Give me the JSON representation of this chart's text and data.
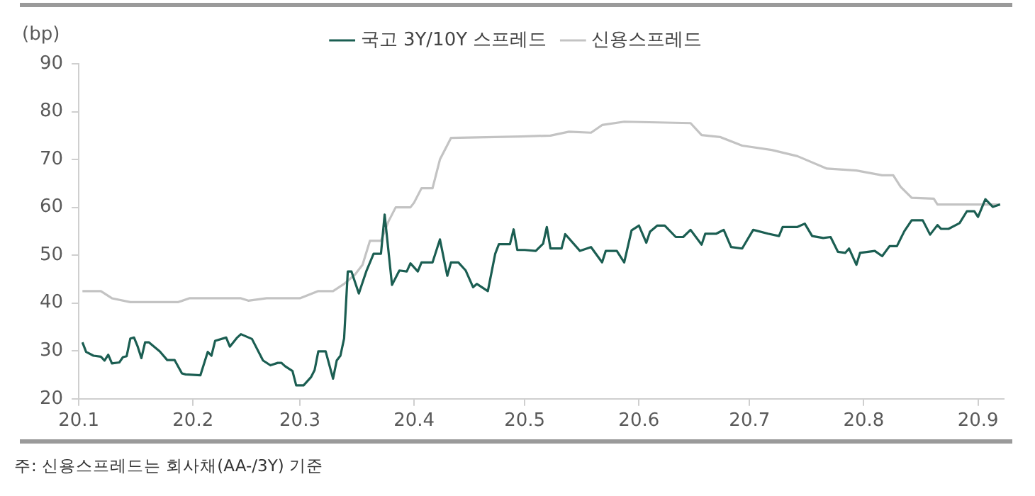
{
  "chart_data": {
    "type": "line",
    "ylabel": "(bp)",
    "legend": "top",
    "grid": false,
    "marker": "none",
    "line_style": "solid",
    "xlim": [
      "--01-01",
      "--09-08"
    ],
    "xticks": [
      {
        "value": "--01-01",
        "label": "20.1"
      },
      {
        "value": "--02-01",
        "label": "20.2"
      },
      {
        "value": "--03-01",
        "label": "20.3"
      },
      {
        "value": "--04-01",
        "label": "20.4"
      },
      {
        "value": "--05-01",
        "label": "20.5"
      },
      {
        "value": "--06-01",
        "label": "20.6"
      },
      {
        "value": "--07-01",
        "label": "20.7"
      },
      {
        "value": "--08-01",
        "label": "20.8"
      },
      {
        "value": "--09-01",
        "label": "20.9"
      }
    ],
    "ylim": [
      20,
      90
    ],
    "yticks": [
      20,
      30,
      40,
      50,
      60,
      70,
      80,
      90
    ],
    "annotations": [
      "주: 신용스프레드는 회사채(AA-/3Y) 기준"
    ],
    "series": [
      {
        "name": "국고 3Y/10Y 스프레드",
        "color": "#1b5e52",
        "x": [
          "--01-02",
          "--01-03",
          "--01-05",
          "--01-07",
          "--01-08",
          "--01-09",
          "--01-10",
          "--01-12",
          "--01-13",
          "--01-14",
          "--01-15",
          "--01-16",
          "--01-17",
          "--01-18",
          "--01-19",
          "--01-20",
          "--01-23",
          "--01-25",
          "--01-27",
          "--01-29",
          "--01-30",
          "--02-03",
          "--02-05",
          "--02-06",
          "--02-07",
          "--02-10",
          "--02-11",
          "--02-13",
          "--02-14",
          "--02-17",
          "--02-20",
          "--02-22",
          "--02-24",
          "--02-25",
          "--02-26",
          "--02-28",
          "--02-29",
          "--03-02",
          "--03-04",
          "--03-05",
          "--03-06",
          "--03-08",
          "--03-10",
          "--03-11",
          "--03-12",
          "--03-13",
          "--03-14",
          "--03-15",
          "--03-17",
          "--03-19",
          "--03-21",
          "--03-23",
          "--03-24",
          "--03-26",
          "--03-28",
          "--03-30",
          "--03-31",
          "--04-02",
          "--04-03",
          "--04-06",
          "--04-08",
          "--04-10",
          "--04-11",
          "--04-13",
          "--04-15",
          "--04-17",
          "--04-18",
          "--04-21",
          "--04-23",
          "--04-24",
          "--04-27",
          "--04-28",
          "--04-29",
          "--05-01",
          "--05-04",
          "--05-06",
          "--05-07",
          "--05-08",
          "--05-11",
          "--05-12",
          "--05-16",
          "--05-19",
          "--05-22",
          "--05-23",
          "--05-26",
          "--05-28",
          "--05-30",
          "--06-01",
          "--06-03",
          "--06-04",
          "--06-06",
          "--06-08",
          "--06-11",
          "--06-13",
          "--06-15",
          "--06-18",
          "--06-19",
          "--06-22",
          "--06-24",
          "--06-26",
          "--06-29",
          "--07-02",
          "--07-06",
          "--07-09",
          "--07-10",
          "--07-14",
          "--07-16",
          "--07-18",
          "--07-21",
          "--07-23",
          "--07-25",
          "--07-27",
          "--07-28",
          "--07-30",
          "--07-31",
          "--08-04",
          "--08-06",
          "--08-08",
          "--08-10",
          "--08-12",
          "--08-14",
          "--08-17",
          "--08-19",
          "--08-21",
          "--08-22",
          "--08-24",
          "--08-27",
          "--08-29",
          "--08-31",
          "--09-01",
          "--09-03",
          "--09-05",
          "--09-07"
        ],
        "values": [
          31.8,
          29.8,
          29,
          28.8,
          28,
          29.2,
          27.4,
          27.6,
          28.7,
          28.9,
          32.6,
          32.8,
          30.9,
          28.5,
          31.8,
          31.8,
          29.9,
          28.1,
          28.1,
          25.3,
          25.1,
          24.9,
          29.8,
          29,
          32.1,
          32.8,
          30.9,
          32.8,
          33.5,
          32.5,
          28,
          27,
          27.5,
          27.5,
          26.8,
          25.8,
          22.8,
          22.8,
          24.5,
          26,
          29.9,
          29.9,
          24.2,
          28,
          29,
          32.6,
          46.6,
          46.6,
          42,
          46.6,
          50.3,
          50.3,
          58.5,
          43.8,
          46.8,
          46.6,
          48.3,
          46.6,
          48.5,
          48.5,
          53.3,
          45.7,
          48.5,
          48.5,
          46.8,
          43.3,
          44,
          42.5,
          50.3,
          52.3,
          52.3,
          55.4,
          51.1,
          51.1,
          50.9,
          52.4,
          55.9,
          51.4,
          51.4,
          54.4,
          50.9,
          51.7,
          48.5,
          50.9,
          50.9,
          48.5,
          55.2,
          56.2,
          52.6,
          54.9,
          56.2,
          56.2,
          53.8,
          53.8,
          55.3,
          52.2,
          54.5,
          54.5,
          55.3,
          51.7,
          51.4,
          55.3,
          54.5,
          54,
          55.9,
          55.9,
          56.6,
          54,
          53.6,
          53.8,
          50.7,
          50.5,
          51.4,
          48,
          50.5,
          50.9,
          49.8,
          51.9,
          51.9,
          55,
          57.3,
          57.3,
          54.3,
          56.3,
          55.5,
          55.5,
          56.7,
          59.2,
          59.2,
          58,
          61.7,
          60.1,
          60.6
        ]
      },
      {
        "name": "신용스프레드",
        "color": "#c3c3c3",
        "x": [
          "--01-02",
          "--01-07",
          "--01-10",
          "--01-15",
          "--01-28",
          "--01-31",
          "--02-14",
          "--02-16",
          "--02-21",
          "--03-01",
          "--03-06",
          "--03-10",
          "--03-13",
          "--03-16",
          "--03-18",
          "--03-20",
          "--03-23",
          "--03-25",
          "--03-27",
          "--03-31",
          "--04-01",
          "--04-03",
          "--04-06",
          "--04-08",
          "--04-11",
          "--04-30",
          "--05-08",
          "--05-13",
          "--05-19",
          "--05-22",
          "--05-28",
          "--06-15",
          "--06-18",
          "--06-23",
          "--06-29",
          "--07-07",
          "--07-14",
          "--07-22",
          "--07-30",
          "--08-06",
          "--08-09",
          "--08-11",
          "--08-14",
          "--08-20",
          "--08-21",
          "--09-07"
        ],
        "values": [
          42.5,
          42.5,
          41,
          40.2,
          40.2,
          41,
          41,
          40.5,
          41,
          41,
          42.5,
          42.5,
          44,
          46,
          48,
          53,
          53,
          57,
          60,
          60,
          61,
          64,
          64,
          70,
          74.5,
          74.8,
          75,
          75.8,
          75.6,
          77.2,
          77.9,
          77.6,
          75.1,
          74.7,
          72.9,
          72,
          70.7,
          68.1,
          67.7,
          66.7,
          66.7,
          64.3,
          62,
          61.8,
          60.6,
          60.6
        ]
      }
    ]
  }
}
